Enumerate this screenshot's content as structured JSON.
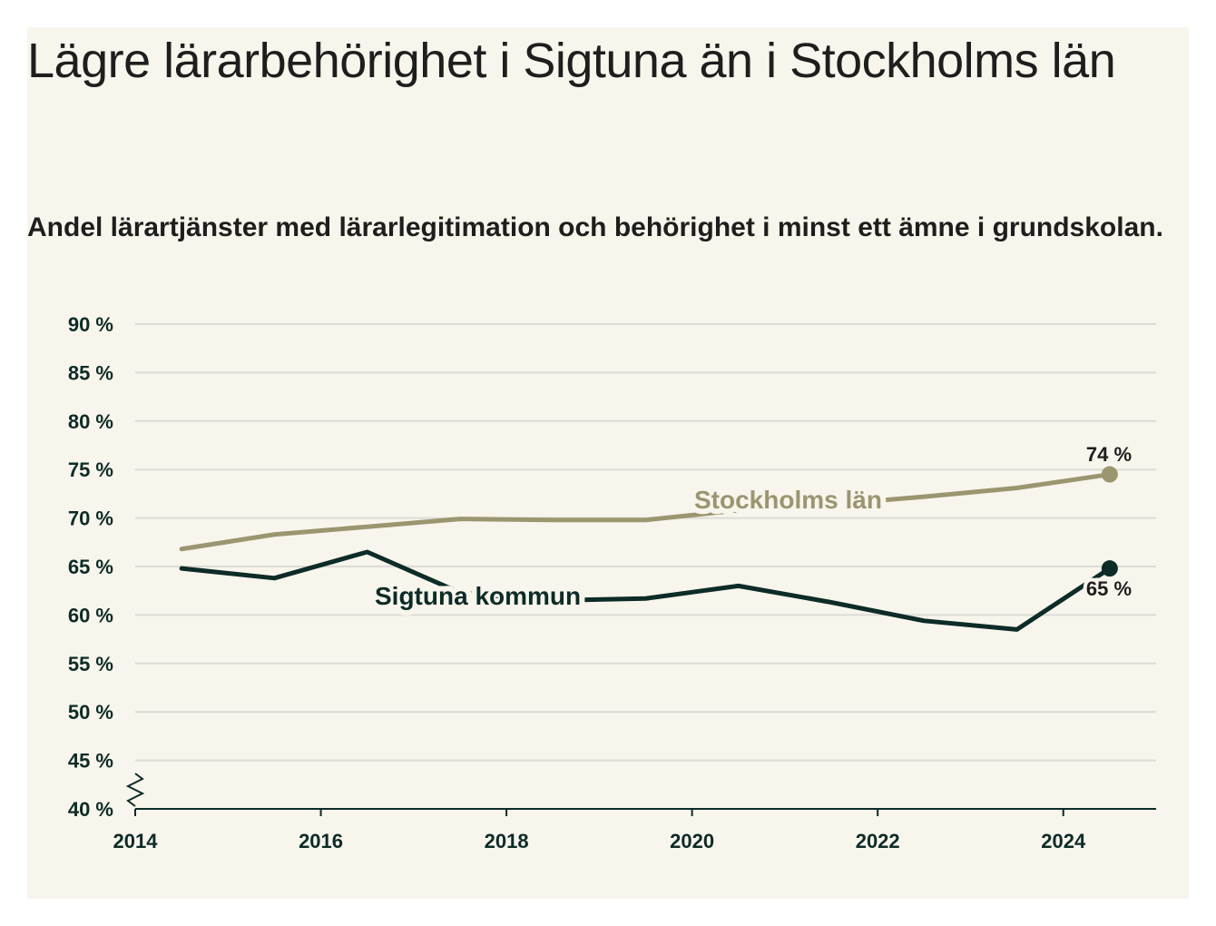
{
  "title": "Lägre lärarbehörighet i Sigtuna än i Stockholms län",
  "subtitle": "Andel lärartjänster med lärarlegitimation och behörighet i minst ett ämne i grundskolan.",
  "colors": {
    "background": "#f7f5ec",
    "grid": "#dcdcd6",
    "axis": "#0d2b27",
    "stockholm": "#9b9570",
    "sigtuna": "#0d2b27"
  },
  "chart_data": {
    "type": "line",
    "x": [
      2014.5,
      2015.5,
      2016.5,
      2017.5,
      2018.5,
      2019.5,
      2020.5,
      2021.5,
      2022.5,
      2023.5,
      2024.5
    ],
    "series": [
      {
        "name": "Stockholms län",
        "values": [
          66.8,
          68.3,
          69.1,
          69.9,
          69.8,
          69.8,
          70.8,
          71.4,
          72.2,
          73.1,
          74.5
        ],
        "end_label": "74 %"
      },
      {
        "name": "Sigtuna kommun",
        "values": [
          64.8,
          63.8,
          66.5,
          62.3,
          61.5,
          61.7,
          63.0,
          61.3,
          59.4,
          58.5,
          64.8
        ],
        "end_label": "65 %"
      }
    ],
    "yticks": [
      40,
      45,
      50,
      55,
      60,
      65,
      70,
      75,
      80,
      85,
      90
    ],
    "ytick_labels": [
      "40 %",
      "45 %",
      "50 %",
      "55 %",
      "60 %",
      "65 %",
      "70 %",
      "75 %",
      "80 %",
      "85 %",
      "90 %"
    ],
    "xticks": [
      2014,
      2016,
      2018,
      2020,
      2022,
      2024
    ],
    "xtick_labels": [
      "2014",
      "2016",
      "2018",
      "2020",
      "2022",
      "2024"
    ],
    "xlim": [
      2014,
      2025
    ],
    "ylim": [
      40,
      90
    ],
    "axis_break": true,
    "grid": true,
    "legend": "inline"
  }
}
